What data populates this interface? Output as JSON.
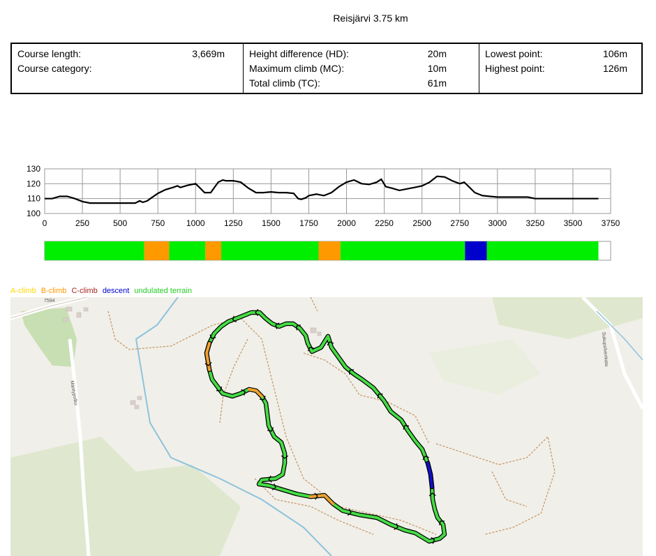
{
  "title": "Reisjärvi 3.75 km",
  "stats": {
    "col1": [
      {
        "label": "Course length:",
        "value": "3,669m"
      },
      {
        "label": "Course category:",
        "value": ""
      }
    ],
    "col2": [
      {
        "label": "Height difference (HD):",
        "value": "20m"
      },
      {
        "label": "Maximum climb (MC):",
        "value": "10m"
      },
      {
        "label": "Total climb (TC):",
        "value": "61m"
      }
    ],
    "col3": [
      {
        "label": "Lowest point:",
        "value": "106m"
      },
      {
        "label": "Highest point:",
        "value": "126m"
      }
    ]
  },
  "chart_data": {
    "type": "line",
    "xlim": [
      0,
      3750
    ],
    "ylim": [
      100,
      130
    ],
    "x_ticks": [
      0,
      250,
      500,
      750,
      1000,
      1250,
      1500,
      1750,
      2000,
      2250,
      2500,
      2750,
      3000,
      3250,
      3500,
      3750
    ],
    "y_ticks": [
      100,
      110,
      120,
      130
    ],
    "grid": true,
    "series": [
      {
        "x": [
          0,
          50,
          100,
          150,
          200,
          250,
          300,
          350,
          400,
          450,
          500,
          550,
          600,
          630,
          650,
          680,
          700,
          750,
          800,
          850,
          880,
          900,
          950,
          1000,
          1030,
          1060,
          1100,
          1150,
          1180,
          1200,
          1250,
          1300,
          1350,
          1400,
          1450,
          1500,
          1550,
          1600,
          1650,
          1680,
          1700,
          1730,
          1750,
          1800,
          1850,
          1900,
          1950,
          2000,
          2050,
          2100,
          2150,
          2200,
          2230,
          2260,
          2300,
          2350,
          2400,
          2450,
          2500,
          2550,
          2600,
          2650,
          2700,
          2750,
          2780,
          2820,
          2850,
          2900,
          2950,
          3000,
          3050,
          3100,
          3150,
          3200,
          3250,
          3300,
          3350,
          3400,
          3450,
          3500,
          3550,
          3600,
          3669
        ],
        "y": [
          110,
          110,
          111.5,
          111.5,
          110,
          108,
          107,
          107,
          107,
          107,
          107,
          107,
          107,
          108.5,
          107.5,
          108.5,
          110,
          113.5,
          116,
          117.5,
          118.5,
          117.5,
          119,
          120,
          117,
          114,
          114,
          121,
          122.5,
          122,
          122,
          121,
          117,
          114,
          114,
          114.5,
          114,
          114,
          113.5,
          110,
          109.5,
          110.5,
          112,
          113,
          112,
          114,
          118,
          121,
          122.5,
          120,
          119.5,
          121,
          123,
          118,
          117,
          115.5,
          116.5,
          117.5,
          118.5,
          121,
          125,
          124.5,
          122,
          120,
          121,
          117,
          114,
          112,
          111.5,
          111,
          111,
          111,
          111,
          111,
          110,
          110,
          110,
          110,
          110,
          110,
          110,
          110,
          110
        ]
      }
    ],
    "category_bar": {
      "segments": [
        {
          "from": 0,
          "to": 660,
          "type": "undulated terrain"
        },
        {
          "from": 660,
          "to": 825,
          "type": "B-climb"
        },
        {
          "from": 825,
          "to": 1065,
          "type": "undulated terrain"
        },
        {
          "from": 1065,
          "to": 1170,
          "type": "B-climb"
        },
        {
          "from": 1170,
          "to": 1815,
          "type": "undulated terrain"
        },
        {
          "from": 1815,
          "to": 1960,
          "type": "B-climb"
        },
        {
          "from": 1960,
          "to": 2785,
          "type": "undulated terrain"
        },
        {
          "from": 2785,
          "to": 2930,
          "type": "descent"
        },
        {
          "from": 2930,
          "to": 3669,
          "type": "undulated terrain"
        }
      ]
    }
  },
  "legend": [
    {
      "label": "A-climb",
      "color": "#ffd700"
    },
    {
      "label": "B-climb",
      "color": "#ff9900"
    },
    {
      "label": "C-climb",
      "color": "#aa2222"
    },
    {
      "label": "descent",
      "color": "#0000cc"
    },
    {
      "label": "undulated terrain",
      "color": "#22cc22"
    }
  ],
  "map": {
    "road_labels": [
      "7594",
      "Mäntypolku",
      "Sukupolvenkatu"
    ]
  }
}
